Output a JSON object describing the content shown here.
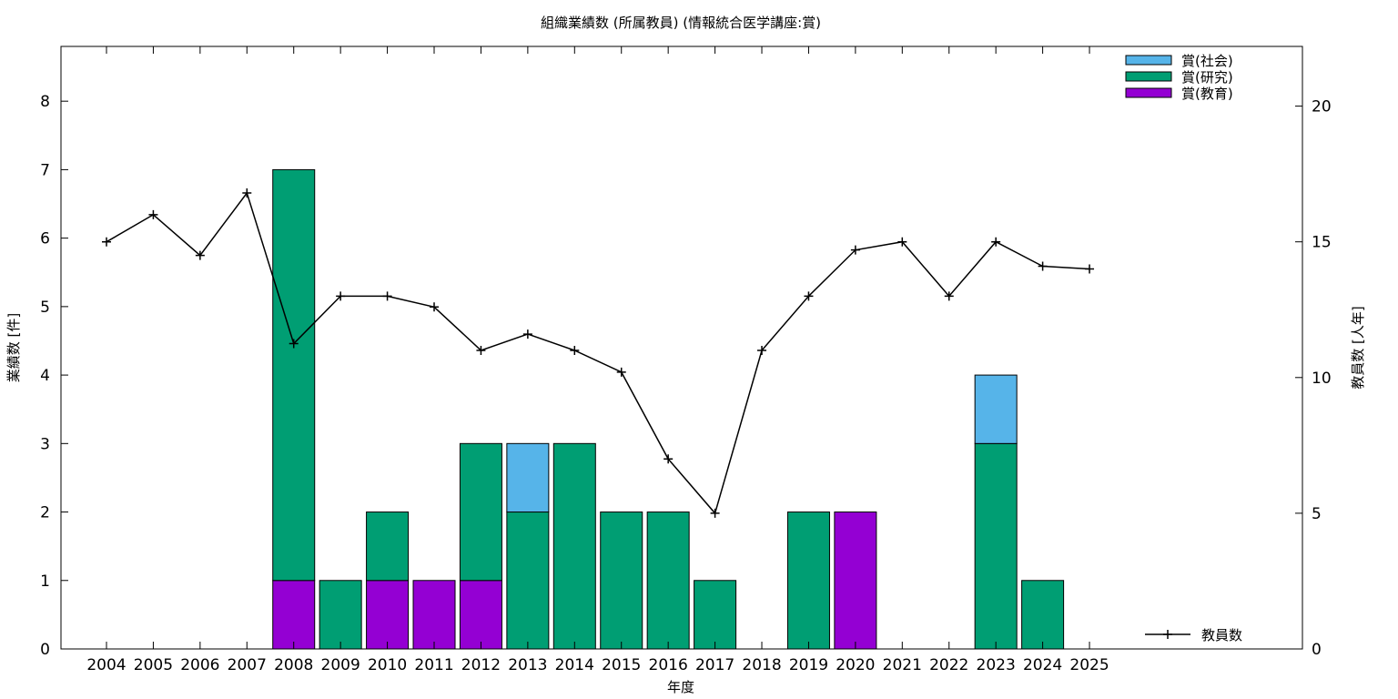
{
  "chart_data": {
    "type": "bar",
    "title": "組織業績数 (所属教員) (情報統合医学講座:賞)",
    "xlabel": "年度",
    "ylabel": "業績数 [件]",
    "y2label": "教員数 [人年]",
    "categories": [
      "2004",
      "2005",
      "2006",
      "2007",
      "2008",
      "2009",
      "2010",
      "2011",
      "2012",
      "2013",
      "2014",
      "2015",
      "2016",
      "2017",
      "2018",
      "2019",
      "2020",
      "2021",
      "2022",
      "2023",
      "2024",
      "2025"
    ],
    "ylim": [
      0,
      8.8
    ],
    "y2lim": [
      0,
      22.2
    ],
    "yticks": [
      0,
      1,
      2,
      3,
      4,
      5,
      6,
      7,
      8
    ],
    "y2ticks": [
      0,
      5,
      10,
      15,
      20
    ],
    "grid": false,
    "legend_position": "top-right",
    "series": [
      {
        "name": "賞(教育)",
        "kind": "bar",
        "color": "#9400d3",
        "values": [
          0,
          0,
          0,
          0,
          1,
          0,
          1,
          1,
          1,
          0,
          0,
          0,
          0,
          0,
          0,
          0,
          2,
          0,
          0,
          0,
          0,
          0
        ]
      },
      {
        "name": "賞(研究)",
        "kind": "bar",
        "color": "#009e73",
        "values": [
          0,
          0,
          0,
          0,
          6,
          1,
          1,
          0,
          2,
          2,
          3,
          2,
          2,
          1,
          0,
          2,
          0,
          0,
          0,
          3,
          1,
          0
        ]
      },
      {
        "name": "賞(社会)",
        "kind": "bar",
        "color": "#56b4e9",
        "values": [
          0,
          0,
          0,
          0,
          0,
          0,
          0,
          0,
          0,
          1,
          0,
          0,
          0,
          0,
          0,
          0,
          0,
          0,
          0,
          1,
          0,
          0
        ]
      },
      {
        "name": "教員数",
        "kind": "line",
        "axis": "y2",
        "color": "#000000",
        "values": [
          15.0,
          16.0,
          14.5,
          16.8,
          11.25,
          13.0,
          13.0,
          12.6,
          11.0,
          11.6,
          11.0,
          10.2,
          7.0,
          5.0,
          11.0,
          13.0,
          14.7,
          15.0,
          13.0,
          15.0,
          14.1,
          14.0
        ]
      }
    ]
  }
}
